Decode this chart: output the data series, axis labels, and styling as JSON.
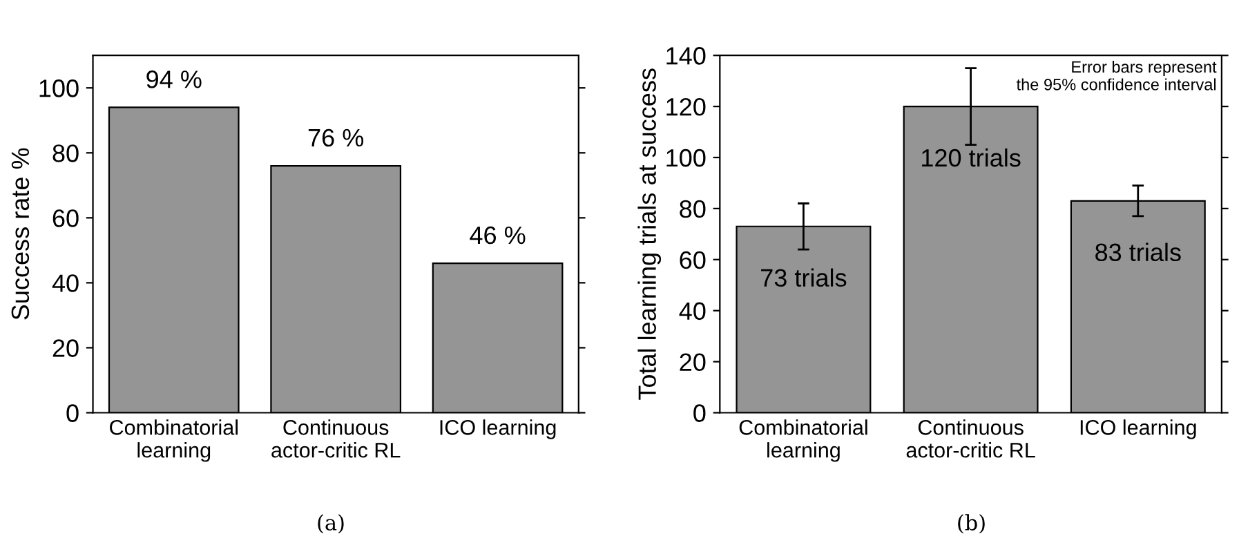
{
  "chart_data": [
    {
      "type": "bar",
      "categories": [
        "Combinatorial\nlearning",
        "Continuous\nactor-critic RL",
        "ICO learning"
      ],
      "values": [
        94,
        76,
        46
      ],
      "color": "#959595",
      "value_labels": [
        "94 %",
        "76 %",
        "46 %"
      ],
      "ylabel": "Success rate %",
      "ylim": [
        0,
        110
      ],
      "yticks": [
        0,
        20,
        40,
        60,
        80,
        100
      ],
      "grid": false,
      "annotations": [
        "(a)"
      ]
    },
    {
      "type": "bar",
      "categories": [
        "Combinatorial\nlearning",
        "Continuous\nactor-critic RL",
        "ICO learning"
      ],
      "values": [
        73,
        120,
        83
      ],
      "color": "#959595",
      "errors": [
        [
          64,
          82
        ],
        [
          105,
          135
        ],
        [
          77,
          89
        ]
      ],
      "value_labels": [
        "73 trials",
        "120 trials",
        "83 trials"
      ],
      "ylabel": "Total learning trials at success",
      "ylim": [
        0,
        140
      ],
      "yticks": [
        0,
        20,
        40,
        60,
        80,
        100,
        120,
        140
      ],
      "grid": false,
      "annotations": [
        "Error bars represent\nthe 95% confidence interval",
        "(b)"
      ]
    }
  ]
}
